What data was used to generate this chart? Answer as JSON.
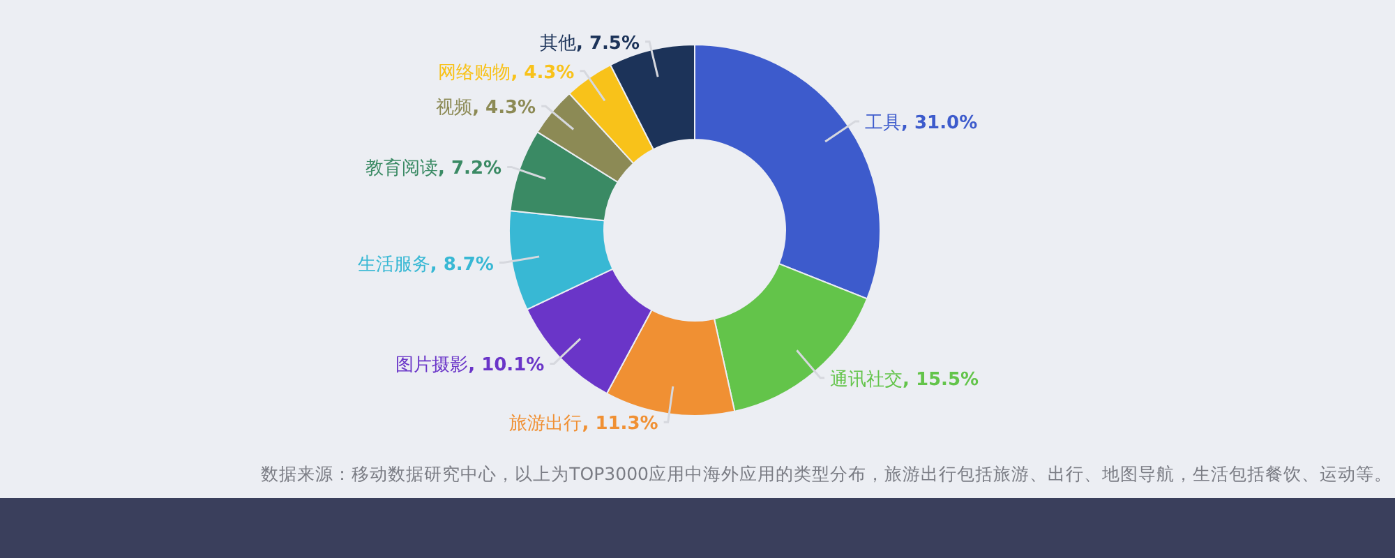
{
  "chart_data": {
    "type": "donut",
    "categories": [
      "工具",
      "通讯社交",
      "旅游出行",
      "图片摄影",
      "生活服务",
      "教育阅读",
      "视频",
      "网络购物",
      "其他"
    ],
    "values": [
      31.0,
      15.5,
      11.3,
      10.1,
      8.7,
      7.2,
      4.3,
      4.3,
      7.5
    ],
    "value_labels": [
      ", 31.0%",
      ", 15.5%",
      ", 11.3%",
      ", 10.1%",
      ", 8.7%",
      ", 7.2%",
      ", 4.3%",
      ", 4.3%",
      ", 7.5%"
    ],
    "colors": [
      "#3d5bcc",
      "#63c44a",
      "#f09033",
      "#6a35c8",
      "#38b8d4",
      "#3a8a64",
      "#8c8a55",
      "#f8c21a",
      "#1c3359"
    ],
    "annotations": [
      "数据来源：移动数据研究中心，以上为TOP3000应用中海外应用的类型分布，旅游出行包括旅游、出行、地图导航，生活包括餐饮、运动等。"
    ]
  }
}
